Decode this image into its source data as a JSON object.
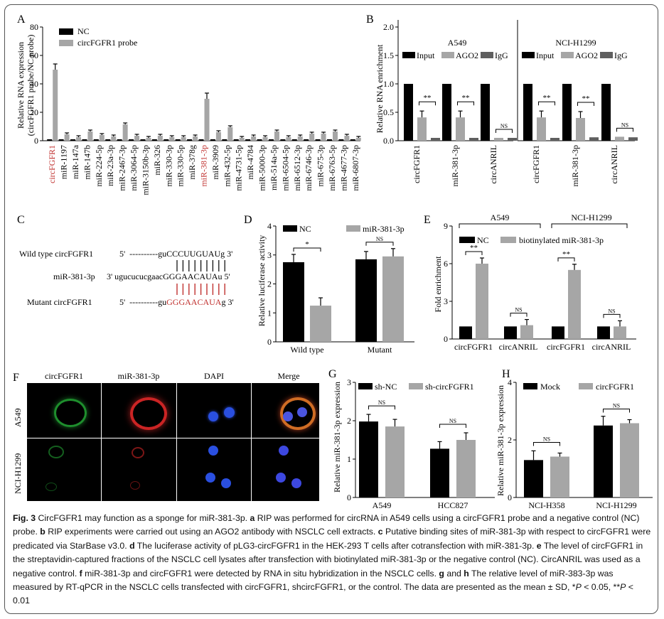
{
  "panels": {
    "A": {
      "letter": "A",
      "ylabel_line1": "Relative RNA expression",
      "ylabel_line2": "(circFGFR1 probe/NC probe)",
      "legend": [
        "NC",
        "circFGFR1 probe"
      ],
      "yticks": [
        "0",
        "20",
        "40",
        "60",
        "80"
      ]
    },
    "B": {
      "letter": "B",
      "ylabel": "Relative RNA enrichment",
      "cell_lines": [
        "A549",
        "NCI-H1299"
      ],
      "legend": [
        "Input",
        "AGO2",
        "IgG"
      ],
      "yticks": [
        "0.0",
        "0.5",
        "1.0",
        "1.5",
        "2.0"
      ],
      "sig": [
        "**",
        "**",
        "NS",
        "**",
        "**",
        "NS"
      ]
    },
    "C": {
      "letter": "C",
      "wt_label": "Wild type circFGFR1",
      "wt_prefix": "5'  ----------gu",
      "wt_seed": "CCCUUGUAU",
      "wt_suffix": "g 3'",
      "mir_label": "miR-381-3p",
      "mir_prefix": "3' ugucucucgaac",
      "mir_seed": "GGGAACAUA",
      "mir_suffix": "u 5'",
      "mut_label": "Mutant circFGFR1",
      "mut_prefix": "5'  ----------gu",
      "mut_seed": "GGGAACAUA",
      "mut_suffix": "g 3'"
    },
    "D": {
      "letter": "D",
      "ylabel": "Relative luciferase activity",
      "legend": [
        "NC",
        "miR-381-3p"
      ],
      "yticks": [
        "0",
        "1",
        "2",
        "3",
        "4"
      ],
      "sig": [
        "*",
        "NS"
      ]
    },
    "E": {
      "letter": "E",
      "ylabel": "Fold enrichment",
      "groups": [
        "A549",
        "NCI-H1299"
      ],
      "legend": [
        "NC",
        "biotinylated miR-381-3p"
      ],
      "yticks": [
        "0",
        "3",
        "6",
        "9"
      ],
      "sig": [
        "**",
        "NS",
        "**",
        "NS"
      ]
    },
    "F": {
      "letter": "F",
      "columns": [
        "circFGFR1",
        "miR-381-3p",
        "DAPI",
        "Merge"
      ],
      "rows": [
        "A549",
        "NCI-H1299"
      ]
    },
    "G": {
      "letter": "G",
      "ylabel": "Relative miR-381-3p expression",
      "legend": [
        "sh-NC",
        "sh-circFGFR1"
      ],
      "yticks": [
        "0",
        "1",
        "2",
        "3"
      ],
      "sig": [
        "NS",
        "NS"
      ]
    },
    "H": {
      "letter": "H",
      "ylabel": "Relative miR-381-3p  expression",
      "legend": [
        "Mock",
        "circFGFR1"
      ],
      "yticks": [
        "0",
        "2",
        "4"
      ],
      "sig": [
        "NS",
        "NS"
      ]
    }
  },
  "colors": {
    "black": "#000000",
    "grey": "#a6a6a6",
    "darkgrey": "#5f5f5f",
    "highlight": "#c0312f"
  },
  "chart_data": [
    {
      "panel": "A",
      "type": "bar",
      "categories": [
        "circFGFR1",
        "miR-1197",
        "miR-147a",
        "miR-147b",
        "miR-224-5p",
        "miR-23a-3p",
        "miR-2467-3p",
        "miR-3064-5p",
        "miR-3150b-3p",
        "miR-326",
        "miR-330-3p",
        "miR-330-5p",
        "miR-378g",
        "miR-381-3p",
        "miR-3909",
        "miR-432-5p",
        "miR-4731-5p",
        "miR-4784",
        "miR-5000-3p",
        "miR-514a-5p",
        "miR-6504-5p",
        "miR-6512-3p",
        "miR-6746-3p",
        "miR-675-3p",
        "miR-6763-5p",
        "miR-4677-3p",
        "miR-6807-3p"
      ],
      "highlighted": [
        "circFGFR1",
        "miR-381-3p"
      ],
      "series": [
        {
          "name": "NC",
          "values": [
            1,
            1,
            1,
            1,
            1,
            1,
            1,
            1,
            1,
            1,
            1,
            1,
            1,
            1,
            1,
            1,
            1,
            1,
            1,
            1,
            1,
            1,
            1,
            1,
            1,
            1,
            1
          ]
        },
        {
          "name": "circFGFR1 probe",
          "values": [
            50,
            4.5,
            2.5,
            6.5,
            4,
            3,
            11.5,
            3.5,
            2,
            3.5,
            2.5,
            2.5,
            3,
            29.5,
            6,
            9.5,
            2,
            3,
            2.5,
            6.5,
            2.5,
            3,
            5,
            5,
            6.5,
            3.5,
            2
          ]
        }
      ],
      "ylabel": "Relative RNA expression (circFGFR1 probe/NC probe)",
      "ylim": [
        0,
        80
      ]
    },
    {
      "panel": "B",
      "type": "bar",
      "groups": [
        "A549",
        "NCI-H1299"
      ],
      "categories": [
        "circFGFR1",
        "miR-381-3p",
        "circANRIL"
      ],
      "series": [
        {
          "name": "Input",
          "values": [
            [
              1,
              1,
              1
            ],
            [
              1,
              1,
              1
            ]
          ]
        },
        {
          "name": "AGO2",
          "values": [
            [
              0.41,
              0.41,
              0.05
            ],
            [
              0.41,
              0.4,
              0.07
            ]
          ]
        },
        {
          "name": "IgG",
          "values": [
            [
              0.05,
              0.05,
              0.05
            ],
            [
              0.05,
              0.06,
              0.06
            ]
          ]
        }
      ],
      "ylabel": "Relative RNA enrichment",
      "ylim": [
        0,
        2.0
      ]
    },
    {
      "panel": "D",
      "type": "bar",
      "categories": [
        "Wild type",
        "Mutant"
      ],
      "series": [
        {
          "name": "NC",
          "values": [
            2.75,
            2.85
          ]
        },
        {
          "name": "miR-381-3p",
          "values": [
            1.25,
            2.95
          ]
        }
      ],
      "ylabel": "Relative luciferase activity",
      "ylim": [
        0,
        4
      ]
    },
    {
      "panel": "E",
      "type": "bar",
      "categories": [
        "circFGFR1",
        "circANRIL",
        "circFGFR1",
        "circANRIL"
      ],
      "series": [
        {
          "name": "NC",
          "values": [
            1,
            1,
            1,
            1
          ]
        },
        {
          "name": "biotinylated miR-381-3p",
          "values": [
            6.0,
            1.1,
            5.5,
            1.0
          ]
        }
      ],
      "ylabel": "Fold enrichment",
      "ylim": [
        0,
        9
      ]
    },
    {
      "panel": "G",
      "type": "bar",
      "categories": [
        "A549",
        "HCC827"
      ],
      "series": [
        {
          "name": "sh-NC",
          "values": [
            1.98,
            1.27
          ]
        },
        {
          "name": "sh-circFGFR1",
          "values": [
            1.85,
            1.5
          ]
        }
      ],
      "ylabel": "Relative miR-381-3p expression",
      "ylim": [
        0,
        3
      ]
    },
    {
      "panel": "H",
      "type": "bar",
      "categories": [
        "NCI-H358",
        "NCI-H1299"
      ],
      "series": [
        {
          "name": "Mock",
          "values": [
            1.3,
            2.5
          ]
        },
        {
          "name": "circFGFR1",
          "values": [
            1.42,
            2.58
          ]
        }
      ],
      "ylabel": "Relative miR-381-3p  expression",
      "ylim": [
        0,
        4
      ]
    }
  ],
  "caption": {
    "fig": "Fig. 3",
    "l1": " CircFGFR1 may function as a sponge for miR-381-3p. ",
    "a": "a",
    "l2": " RIP was performed for circRNA in A549 cells using a circFGFR1 probe and a negative control (NC) probe. ",
    "b": "b",
    "l3": " RIP experiments were carried out using an AGO2 antibody with NSCLC cell extracts. ",
    "c": "c",
    "l4": " Putative binding sites of miR-381-3p with respect to circFGFR1 were predicated via StarBase v3.0. ",
    "d": "d",
    "l5": " The luciferase activity of pLG3-circFGFR1 in the HEK-293 T cells after cotransfection with miR-381-3p. ",
    "e": "e",
    "l6": " The level of circFGFR1 in the streptavidin-captured fractions of the NSCLC cell lysates after transfection with biotinylated miR-381-3p or the negative control (NC). CircANRIL was used as a negative control. ",
    "f": "f",
    "l7": " miR-381-3p and circFGFR1 were detected by RNA in situ hybridization in the NSCLC cells. ",
    "g": "g",
    "and": " and ",
    "h": "h",
    "l8": " The relative level of miR-383-3p was measured by RT-qPCR in the NSCLC cells transfected with circFGFR1, shcircFGFR1, or the control. The data are presented as the mean ± SD, *",
    "p1": "P",
    "l9": " < 0.05, **",
    "p2": "P",
    "l10": " < 0.01"
  }
}
